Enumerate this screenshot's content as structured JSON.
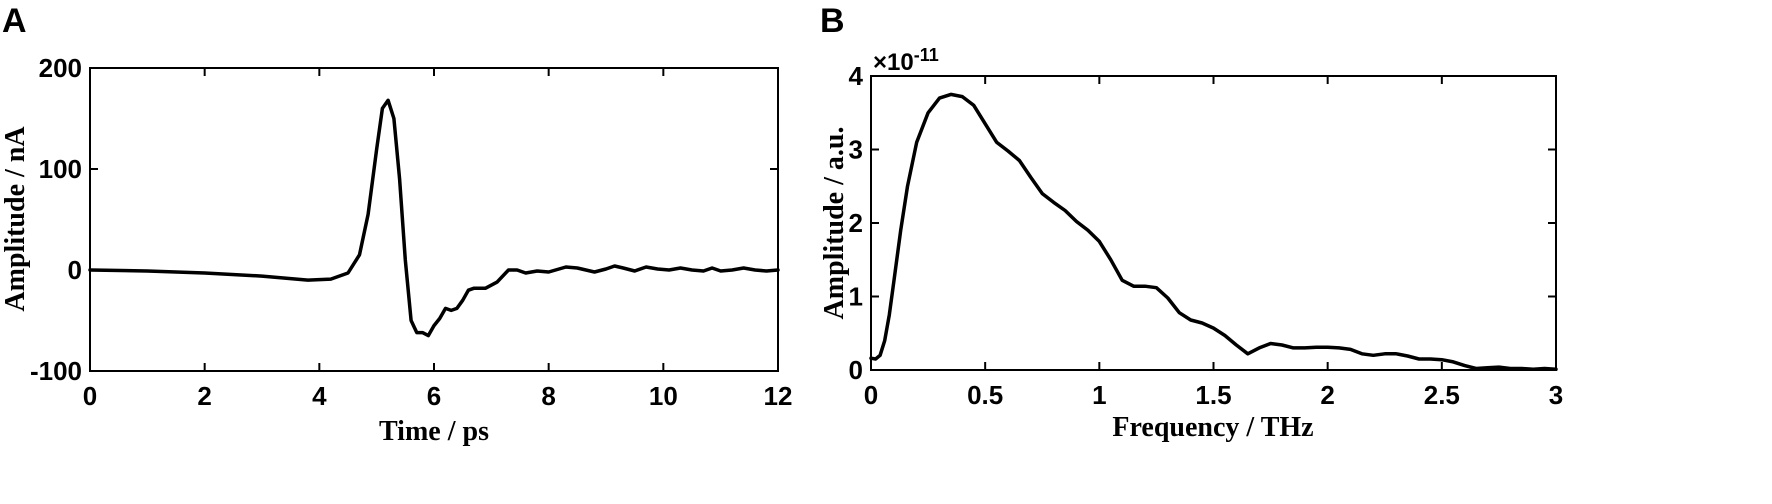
{
  "chart_data": [
    {
      "panel_label": "A",
      "type": "line",
      "title": "",
      "xlabel": "Time / ps",
      "ylabel": "Amplitude / nA",
      "xlim": [
        0,
        12
      ],
      "ylim": [
        -100,
        200
      ],
      "xticks": [
        0,
        2,
        4,
        6,
        8,
        10,
        12
      ],
      "yticks": [
        -100,
        0,
        100,
        200
      ],
      "grid": false,
      "series": [
        {
          "x": [
            0,
            1,
            2,
            3,
            3.8,
            4.2,
            4.5,
            4.7,
            4.85,
            5.0,
            5.1,
            5.2,
            5.3,
            5.4,
            5.5,
            5.6,
            5.7,
            5.8,
            5.9,
            6.0,
            6.1,
            6.2,
            6.3,
            6.4,
            6.5,
            6.6,
            6.7,
            6.9,
            7.1,
            7.3,
            7.45,
            7.6,
            7.8,
            8.0,
            8.3,
            8.5,
            8.8,
            9.0,
            9.15,
            9.3,
            9.5,
            9.7,
            9.9,
            10.1,
            10.3,
            10.5,
            10.7,
            10.85,
            11.0,
            11.2,
            11.4,
            11.6,
            11.8,
            12.0
          ],
          "y": [
            0,
            -1,
            -3,
            -6,
            -10,
            -9,
            -3,
            15,
            55,
            120,
            160,
            168,
            150,
            90,
            10,
            -50,
            -62,
            -62,
            -65,
            -55,
            -48,
            -38,
            -40,
            -38,
            -30,
            -20,
            -18,
            -18,
            -12,
            0,
            0,
            -3,
            -1,
            -2,
            3,
            2,
            -2,
            1,
            4,
            2,
            -1,
            3,
            1,
            0,
            2,
            0,
            -1,
            2,
            -1,
            0,
            2,
            0,
            -1,
            0
          ]
        }
      ]
    },
    {
      "panel_label": "B",
      "type": "line",
      "title": "",
      "xlabel": "Frequency / THz",
      "ylabel": "Amplitude / a.u.",
      "exponent_label": "×10",
      "exponent_power": "-11",
      "xlim": [
        0,
        3
      ],
      "ylim": [
        0,
        4
      ],
      "xticks": [
        0,
        0.5,
        1,
        1.5,
        2,
        2.5,
        3
      ],
      "xtick_labels": [
        "0",
        "0.5",
        "1",
        "1.5",
        "2",
        "2.5",
        "3"
      ],
      "yticks": [
        0,
        1,
        2,
        3,
        4
      ],
      "grid": false,
      "series": [
        {
          "x": [
            0,
            0.02,
            0.04,
            0.06,
            0.08,
            0.1,
            0.13,
            0.16,
            0.2,
            0.25,
            0.3,
            0.35,
            0.4,
            0.45,
            0.5,
            0.55,
            0.6,
            0.65,
            0.7,
            0.75,
            0.8,
            0.85,
            0.9,
            0.95,
            1.0,
            1.05,
            1.1,
            1.15,
            1.2,
            1.25,
            1.3,
            1.35,
            1.4,
            1.45,
            1.5,
            1.55,
            1.6,
            1.65,
            1.7,
            1.75,
            1.8,
            1.85,
            1.9,
            1.95,
            2.0,
            2.05,
            2.1,
            2.15,
            2.2,
            2.25,
            2.3,
            2.35,
            2.4,
            2.45,
            2.5,
            2.55,
            2.6,
            2.65,
            2.7,
            2.75,
            2.8,
            2.85,
            2.9,
            2.95,
            3.0
          ],
          "y": [
            0.16,
            0.15,
            0.2,
            0.4,
            0.75,
            1.2,
            1.9,
            2.5,
            3.1,
            3.5,
            3.7,
            3.75,
            3.72,
            3.6,
            3.35,
            3.1,
            2.98,
            2.85,
            2.62,
            2.4,
            2.28,
            2.17,
            2.02,
            1.9,
            1.75,
            1.5,
            1.22,
            1.14,
            1.14,
            1.12,
            0.98,
            0.78,
            0.68,
            0.64,
            0.57,
            0.47,
            0.34,
            0.22,
            0.3,
            0.36,
            0.34,
            0.3,
            0.3,
            0.31,
            0.31,
            0.3,
            0.28,
            0.22,
            0.2,
            0.22,
            0.22,
            0.19,
            0.15,
            0.15,
            0.14,
            0.11,
            0.06,
            0.02,
            0.03,
            0.04,
            0.02,
            0.02,
            0.01,
            0.02,
            0.01
          ]
        }
      ]
    }
  ]
}
